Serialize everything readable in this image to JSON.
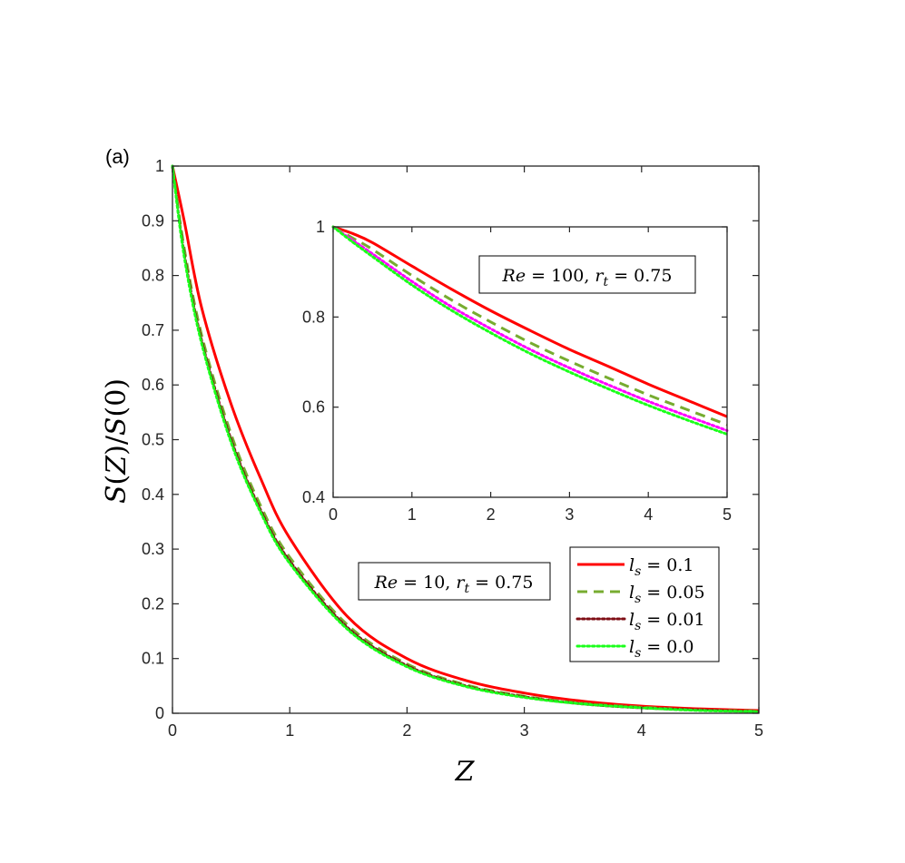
{
  "panel_label": "(a)",
  "chart_data": [
    {
      "type": "line",
      "role": "main",
      "xlabel": "Z",
      "ylabel": "S(Z)/S(0)",
      "xlim": [
        0,
        5
      ],
      "ylim": [
        0,
        1
      ],
      "xticks": [
        "0",
        "1",
        "2",
        "3",
        "4",
        "5"
      ],
      "yticks": [
        "0",
        "0.1",
        "0.2",
        "0.3",
        "0.4",
        "0.5",
        "0.6",
        "0.7",
        "0.8",
        "0.9",
        "1"
      ],
      "grid": false,
      "annotation": "Re = 10, r_t = 0.75",
      "legend": {
        "placement": "bottom-right",
        "entries": [
          "l_s = 0.1",
          "l_s = 0.05",
          "l_s = 0.01",
          "l_s = 0.0"
        ]
      },
      "series": [
        {
          "name": "l_s = 0.1",
          "color": "#ff0000",
          "dash": "solid",
          "x": [
            0,
            0.1,
            0.25,
            0.5,
            0.75,
            1.0,
            1.5,
            2.0,
            2.5,
            3.0,
            3.5,
            4.0,
            4.5,
            5.0
          ],
          "y": [
            1.0,
            0.9,
            0.74,
            0.565,
            0.43,
            0.32,
            0.175,
            0.1,
            0.06,
            0.037,
            0.022,
            0.013,
            0.008,
            0.005
          ]
        },
        {
          "name": "l_s = 0.05",
          "color": "#77ac30",
          "dash": "dashed",
          "x": [
            0,
            0.1,
            0.25,
            0.5,
            0.75,
            1.0,
            1.5,
            2.0,
            2.5,
            3.0,
            3.5,
            4.0,
            4.5,
            5.0
          ],
          "y": [
            1.0,
            0.85,
            0.69,
            0.51,
            0.38,
            0.285,
            0.16,
            0.09,
            0.052,
            0.031,
            0.018,
            0.011,
            0.006,
            0.004
          ]
        },
        {
          "name": "l_s = 0.01",
          "color": "#7e0d14",
          "dash": "dotted",
          "x": [
            0,
            0.1,
            0.25,
            0.5,
            0.75,
            1.0,
            1.5,
            2.0,
            2.5,
            3.0,
            3.5,
            4.0,
            4.5,
            5.0
          ],
          "y": [
            1.0,
            0.84,
            0.68,
            0.5,
            0.372,
            0.278,
            0.155,
            0.087,
            0.05,
            0.03,
            0.017,
            0.01,
            0.006,
            0.003
          ]
        },
        {
          "name": "l_s = 0.0",
          "color": "#1aff1a",
          "dash": "dotted",
          "x": [
            0,
            0.1,
            0.25,
            0.5,
            0.75,
            1.0,
            1.5,
            2.0,
            2.5,
            3.0,
            3.5,
            4.0,
            4.5,
            5.0
          ],
          "y": [
            1.0,
            0.835,
            0.675,
            0.495,
            0.368,
            0.274,
            0.152,
            0.085,
            0.049,
            0.029,
            0.017,
            0.01,
            0.005,
            0.003
          ]
        }
      ]
    },
    {
      "type": "line",
      "role": "inset",
      "xlim": [
        0,
        5
      ],
      "ylim": [
        0.4,
        1
      ],
      "xticks": [
        "0",
        "1",
        "2",
        "3",
        "4",
        "5"
      ],
      "yticks": [
        "0.4",
        "0.6",
        "0.8",
        "1"
      ],
      "grid": false,
      "annotation": "Re = 100, r_t = 0.75",
      "series": [
        {
          "name": "l_s = 0.1",
          "color": "#ff0000",
          "dash": "solid",
          "x": [
            0,
            0.25,
            0.5,
            1.0,
            1.5,
            2.0,
            2.5,
            3.0,
            3.5,
            4.0,
            4.5,
            5.0
          ],
          "y": [
            1.0,
            0.985,
            0.965,
            0.913,
            0.862,
            0.814,
            0.77,
            0.728,
            0.69,
            0.651,
            0.615,
            0.579
          ]
        },
        {
          "name": "l_s = 0.05",
          "color": "#77ac30",
          "dash": "dashed",
          "x": [
            0,
            0.25,
            0.5,
            1.0,
            1.5,
            2.0,
            2.5,
            3.0,
            3.5,
            4.0,
            4.5,
            5.0
          ],
          "y": [
            1.0,
            0.975,
            0.95,
            0.892,
            0.838,
            0.789,
            0.743,
            0.702,
            0.664,
            0.627,
            0.594,
            0.561
          ]
        },
        {
          "name": "l_s = 0.01",
          "color": "#ff00ff",
          "dash": "dotted",
          "x": [
            0,
            0.25,
            0.5,
            1.0,
            1.5,
            2.0,
            2.5,
            3.0,
            3.5,
            4.0,
            4.5,
            5.0
          ],
          "y": [
            1.0,
            0.97,
            0.94,
            0.879,
            0.823,
            0.774,
            0.728,
            0.687,
            0.649,
            0.613,
            0.58,
            0.548
          ]
        },
        {
          "name": "l_s = 0.0",
          "color": "#1aff1a",
          "dash": "dotted",
          "x": [
            0,
            0.25,
            0.5,
            1.0,
            1.5,
            2.0,
            2.5,
            3.0,
            3.5,
            4.0,
            4.5,
            5.0
          ],
          "y": [
            1.0,
            0.966,
            0.934,
            0.871,
            0.815,
            0.765,
            0.719,
            0.678,
            0.64,
            0.604,
            0.571,
            0.54
          ]
        }
      ]
    }
  ]
}
